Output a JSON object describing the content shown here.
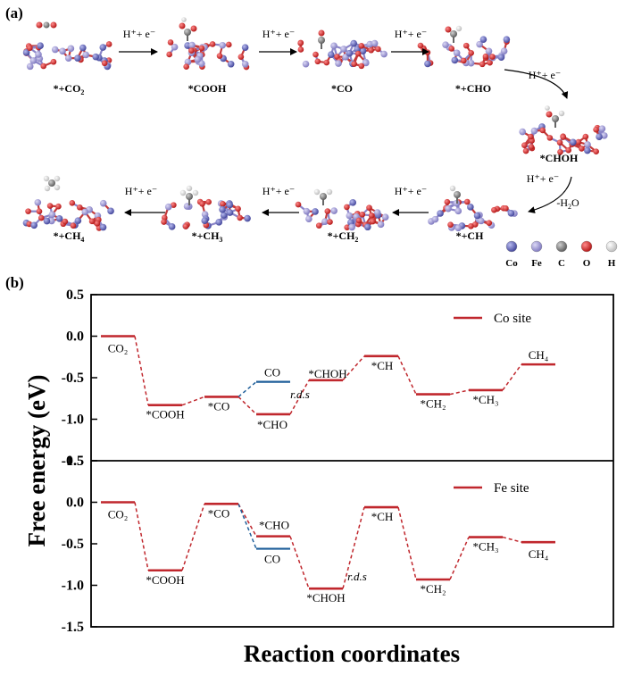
{
  "panel_a": {
    "label": "(a)",
    "steps": [
      {
        "id": "s1",
        "label": "*+CO",
        "sub": "2"
      },
      {
        "id": "s2",
        "label": "*COOH",
        "sub": ""
      },
      {
        "id": "s3",
        "label": "*CO",
        "sub": ""
      },
      {
        "id": "s4",
        "label": "*+CHO",
        "sub": ""
      },
      {
        "id": "s5",
        "label": "*CHOH",
        "sub": ""
      },
      {
        "id": "s6",
        "label": "*+CH",
        "sub": ""
      },
      {
        "id": "s7",
        "label": "*+CH",
        "sub": "2"
      },
      {
        "id": "s8",
        "label": "*+CH",
        "sub": "3"
      },
      {
        "id": "s9",
        "label": "*+CH",
        "sub": "4"
      }
    ],
    "arrow_label": "H⁺+ e⁻",
    "water_label": "-H",
    "water_sub": "2",
    "water_tail": "O",
    "legend": [
      {
        "label": "Co",
        "color": "#4b4fa8"
      },
      {
        "label": "Fe",
        "color": "#8a84c8"
      },
      {
        "label": "C",
        "color": "#7a7a7a"
      },
      {
        "label": "O",
        "color": "#d42020"
      },
      {
        "label": "H",
        "color": "#f2f2f2"
      }
    ]
  },
  "panel_b": {
    "label": "(b)",
    "ylabel": "Free energy (eV)",
    "xlabel": "Reaction coordinates"
  },
  "chart_data": [
    {
      "type": "line",
      "subtype": "free-energy-diagram",
      "series_name": "Co site",
      "ylim": [
        -1.5,
        0.5
      ],
      "yticks": [
        "0.5",
        "0.0",
        "-0.5",
        "-1.0",
        "-1.5"
      ],
      "line_color": "#c0272d",
      "branch_color": "#1f5f9a",
      "levels": [
        {
          "label": "CO₂",
          "slot": 0,
          "y": 0.0
        },
        {
          "label": "*COOH",
          "slot": 1,
          "y": -0.83
        },
        {
          "label": "*CO",
          "slot": 2,
          "y": -0.73
        },
        {
          "label": "*CHO",
          "slot": 3,
          "y": -0.94
        },
        {
          "label": "*CHOH",
          "slot": 4,
          "y": -0.53
        },
        {
          "label": "*CH",
          "slot": 5,
          "y": -0.24
        },
        {
          "label": "*CH₂",
          "slot": 6,
          "y": -0.7
        },
        {
          "label": "*CH₃",
          "slot": 7,
          "y": -0.65
        },
        {
          "label": "CH₄",
          "slot": 8,
          "y": -0.34
        }
      ],
      "branch": {
        "label": "CO",
        "from_slot": 2,
        "slot": 3,
        "y": -0.55
      },
      "annotation": "r.d.s"
    },
    {
      "type": "line",
      "subtype": "free-energy-diagram",
      "series_name": "Fe site",
      "ylim": [
        -1.5,
        0.5
      ],
      "yticks": [
        "0.5",
        "0.0",
        "-0.5",
        "-1.0",
        "-1.5"
      ],
      "line_color": "#c0272d",
      "branch_color": "#1f5f9a",
      "levels": [
        {
          "label": "CO₂",
          "slot": 0,
          "y": 0.0
        },
        {
          "label": "*COOH",
          "slot": 1,
          "y": -0.82
        },
        {
          "label": "*CO",
          "slot": 2,
          "y": -0.02
        },
        {
          "label": "*CHO",
          "slot": 3,
          "y": -0.41
        },
        {
          "label": "*CHOH",
          "slot": 4,
          "y": -1.04
        },
        {
          "label": "*CH",
          "slot": 5,
          "y": -0.06
        },
        {
          "label": "*CH₂",
          "slot": 6,
          "y": -0.93
        },
        {
          "label": "*CH₃",
          "slot": 7,
          "y": -0.42
        },
        {
          "label": "CH₄",
          "slot": 8,
          "y": -0.48
        }
      ],
      "branch": {
        "label": "CO",
        "from_slot": 2,
        "slot": 3,
        "y": -0.56
      },
      "annotation": "r.d.s"
    }
  ]
}
